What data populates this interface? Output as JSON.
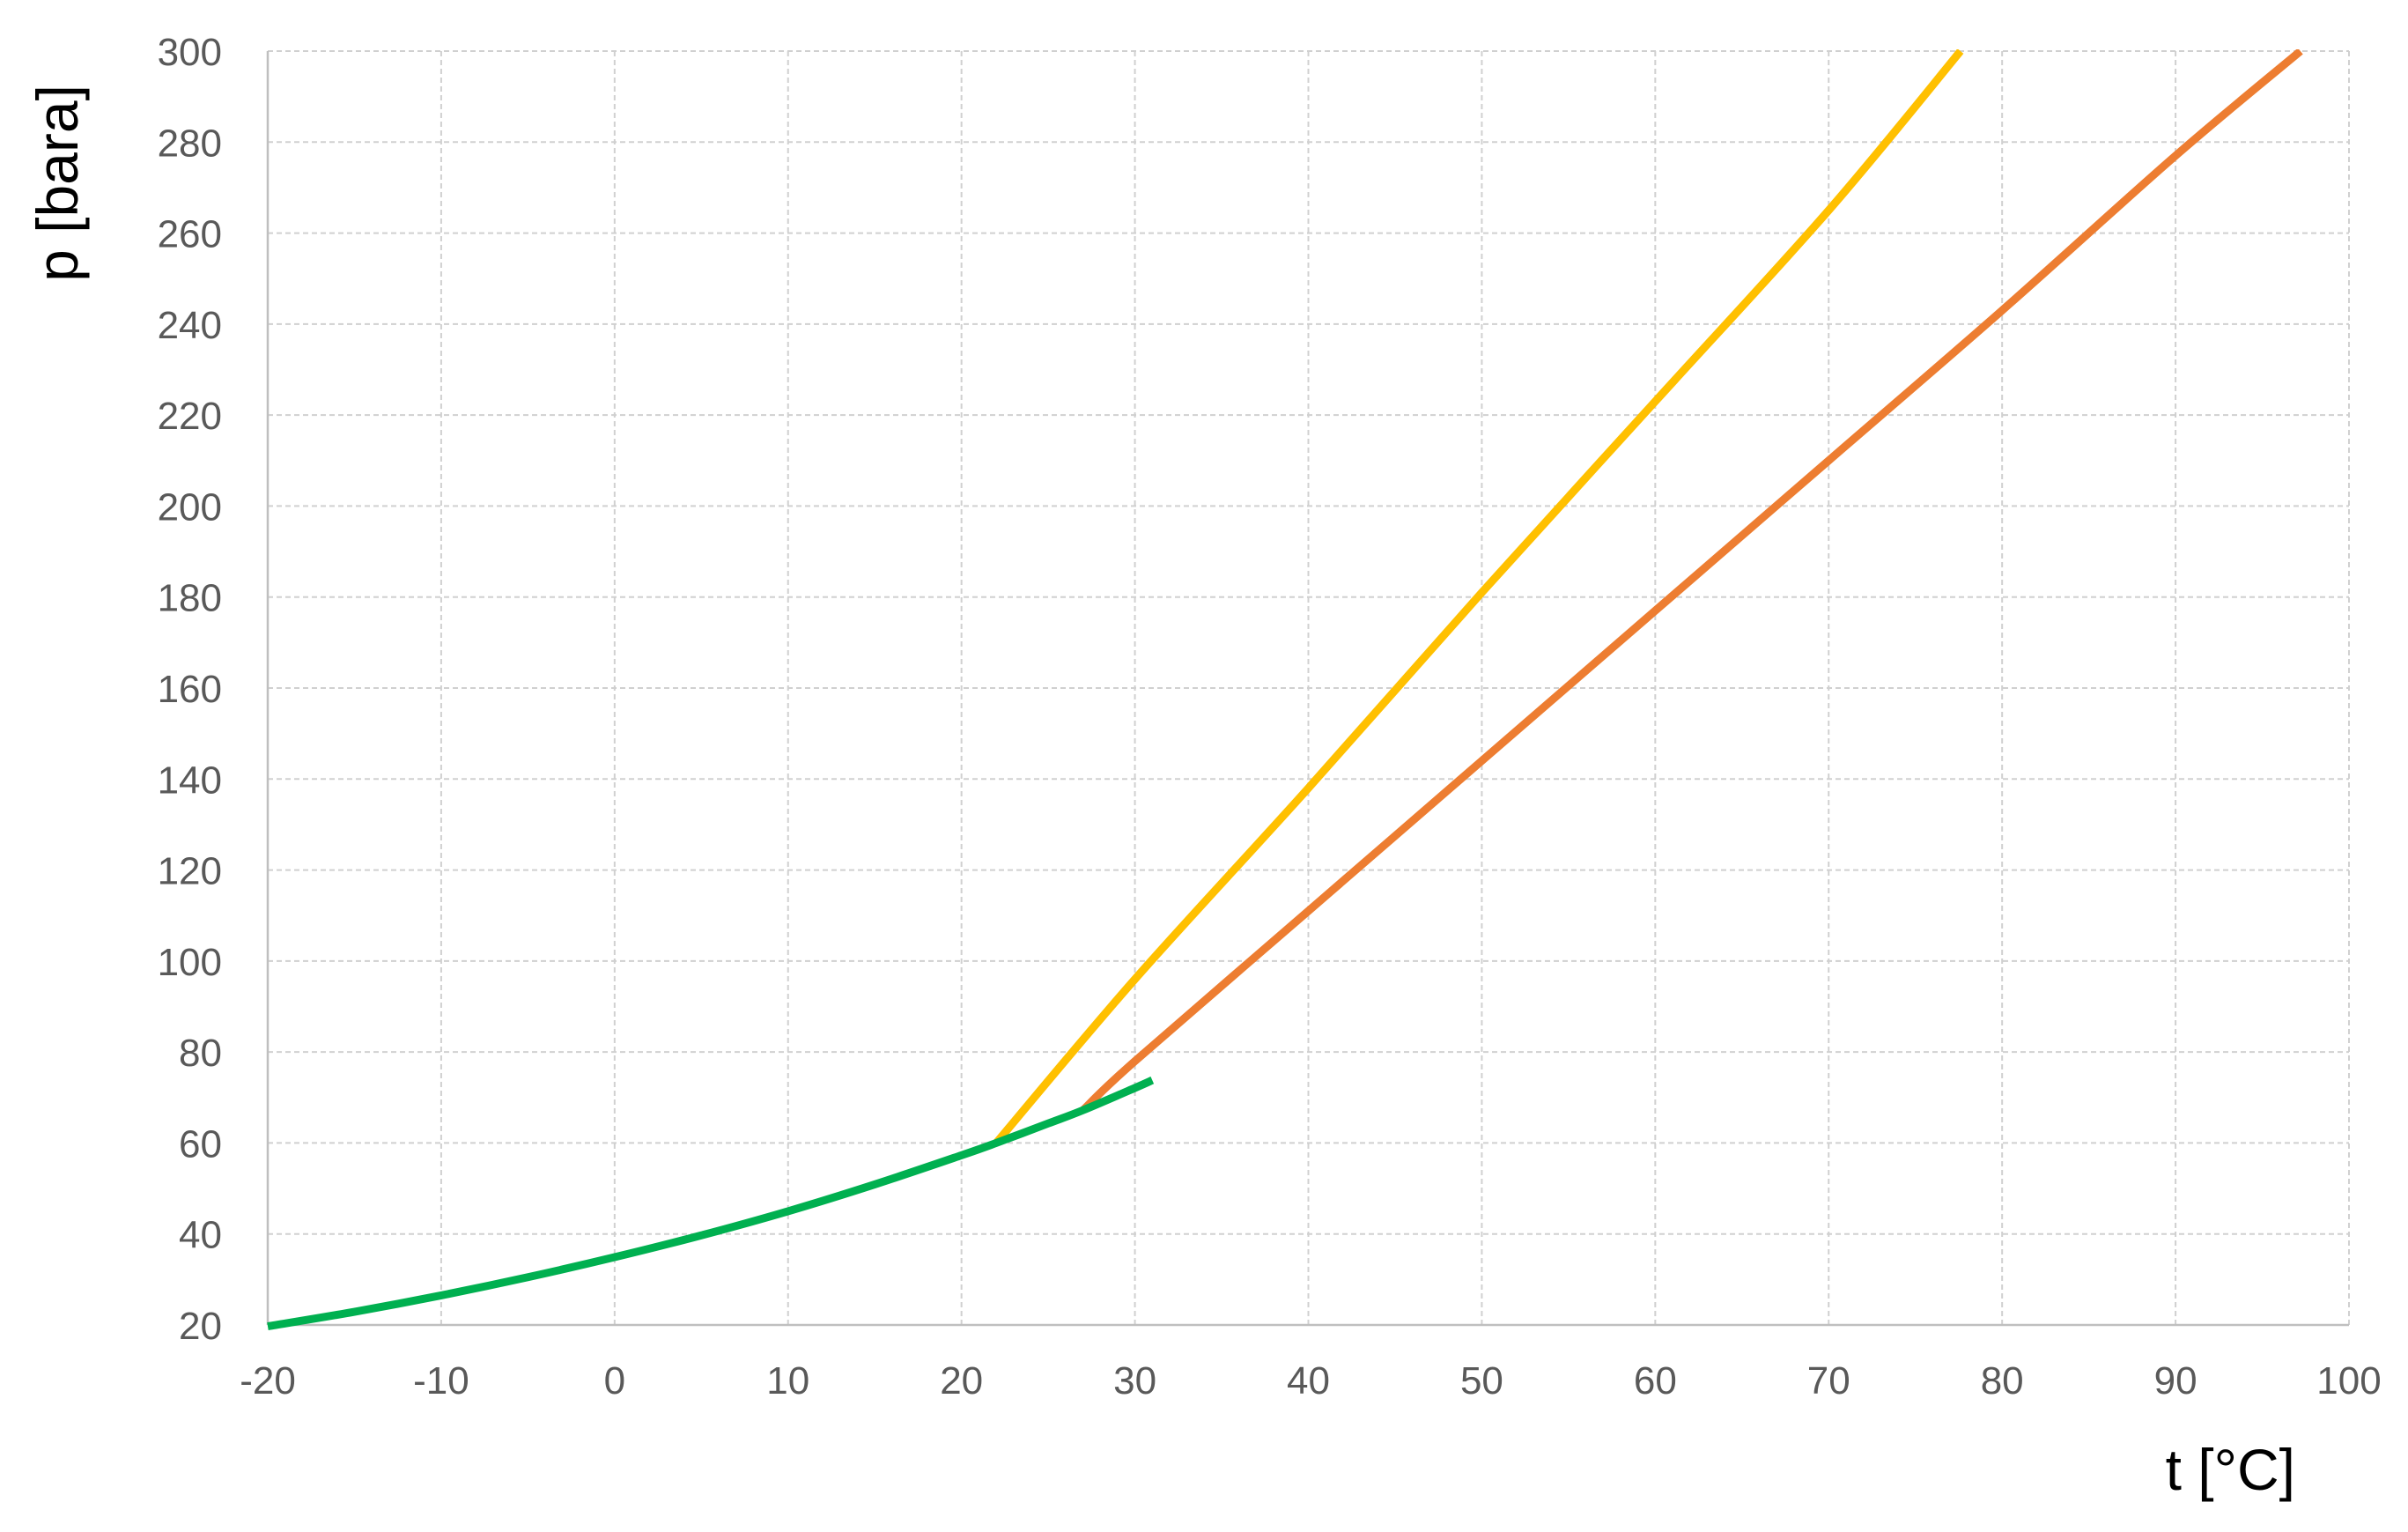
{
  "chart_data": {
    "type": "line",
    "title": "",
    "xlabel": "t [°C]",
    "ylabel": "p [bara]",
    "xlim": [
      -20,
      100
    ],
    "ylim": [
      20,
      300
    ],
    "xticks": [
      "-20",
      "-10",
      "0",
      "10",
      "20",
      "30",
      "40",
      "50",
      "60",
      "70",
      "80",
      "90",
      "100"
    ],
    "yticks": [
      "20",
      "40",
      "60",
      "80",
      "100",
      "120",
      "140",
      "160",
      "180",
      "200",
      "220",
      "240",
      "260",
      "280",
      "300"
    ],
    "grid": true,
    "legend": "none",
    "series": [
      {
        "color": "#00b050",
        "x": [
          -20,
          -15,
          -10,
          -5,
          0,
          5,
          10,
          15,
          20,
          22,
          25,
          27,
          30,
          31
        ],
        "y": [
          19.7,
          22.9,
          26.5,
          30.5,
          34.9,
          39.7,
          45.0,
          50.9,
          57.3,
          60.0,
          64.3,
          67.2,
          72.1,
          73.8
        ]
      },
      {
        "color": "#ffc000",
        "x": [
          22,
          30,
          40,
          50,
          60,
          70,
          77.6
        ],
        "y": [
          60.0,
          96,
          138,
          181,
          223,
          265,
          300
        ]
      },
      {
        "color": "#ed7d31",
        "x": [
          27,
          30,
          40,
          50,
          60,
          70,
          80,
          90,
          97.2
        ],
        "y": [
          67.2,
          78,
          111,
          144,
          177,
          210,
          243,
          277,
          300
        ]
      }
    ]
  }
}
